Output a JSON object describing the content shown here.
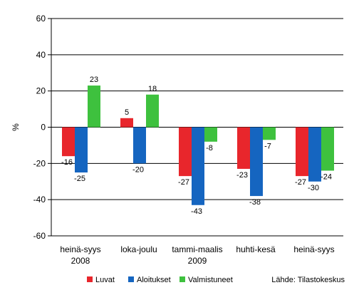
{
  "chart_data": {
    "type": "bar",
    "ylabel": "%",
    "ylim": [
      -60,
      60
    ],
    "yticks": [
      -60,
      -40,
      -20,
      0,
      20,
      40,
      60
    ],
    "grid": true,
    "categories": [
      {
        "line1": "heinä-syys",
        "line2": "2008"
      },
      {
        "line1": "loka-joulu",
        "line2": ""
      },
      {
        "line1": "tammi-maalis",
        "line2": "2009"
      },
      {
        "line1": "huhti-kesä",
        "line2": ""
      },
      {
        "line1": "heinä-syys",
        "line2": ""
      }
    ],
    "series": [
      {
        "name": "Luvat",
        "color": "#e8262c",
        "values": [
          -16,
          5,
          -27,
          -23,
          -27
        ]
      },
      {
        "name": "Aloitukset",
        "color": "#1565c0",
        "values": [
          -25,
          -20,
          -43,
          -38,
          -30
        ]
      },
      {
        "name": "Valmistuneet",
        "color": "#3ec13e",
        "values": [
          23,
          18,
          -8,
          -7,
          -24
        ]
      }
    ],
    "legend_position": "bottom",
    "source_note": "Lähde: Tilastokeskus"
  }
}
